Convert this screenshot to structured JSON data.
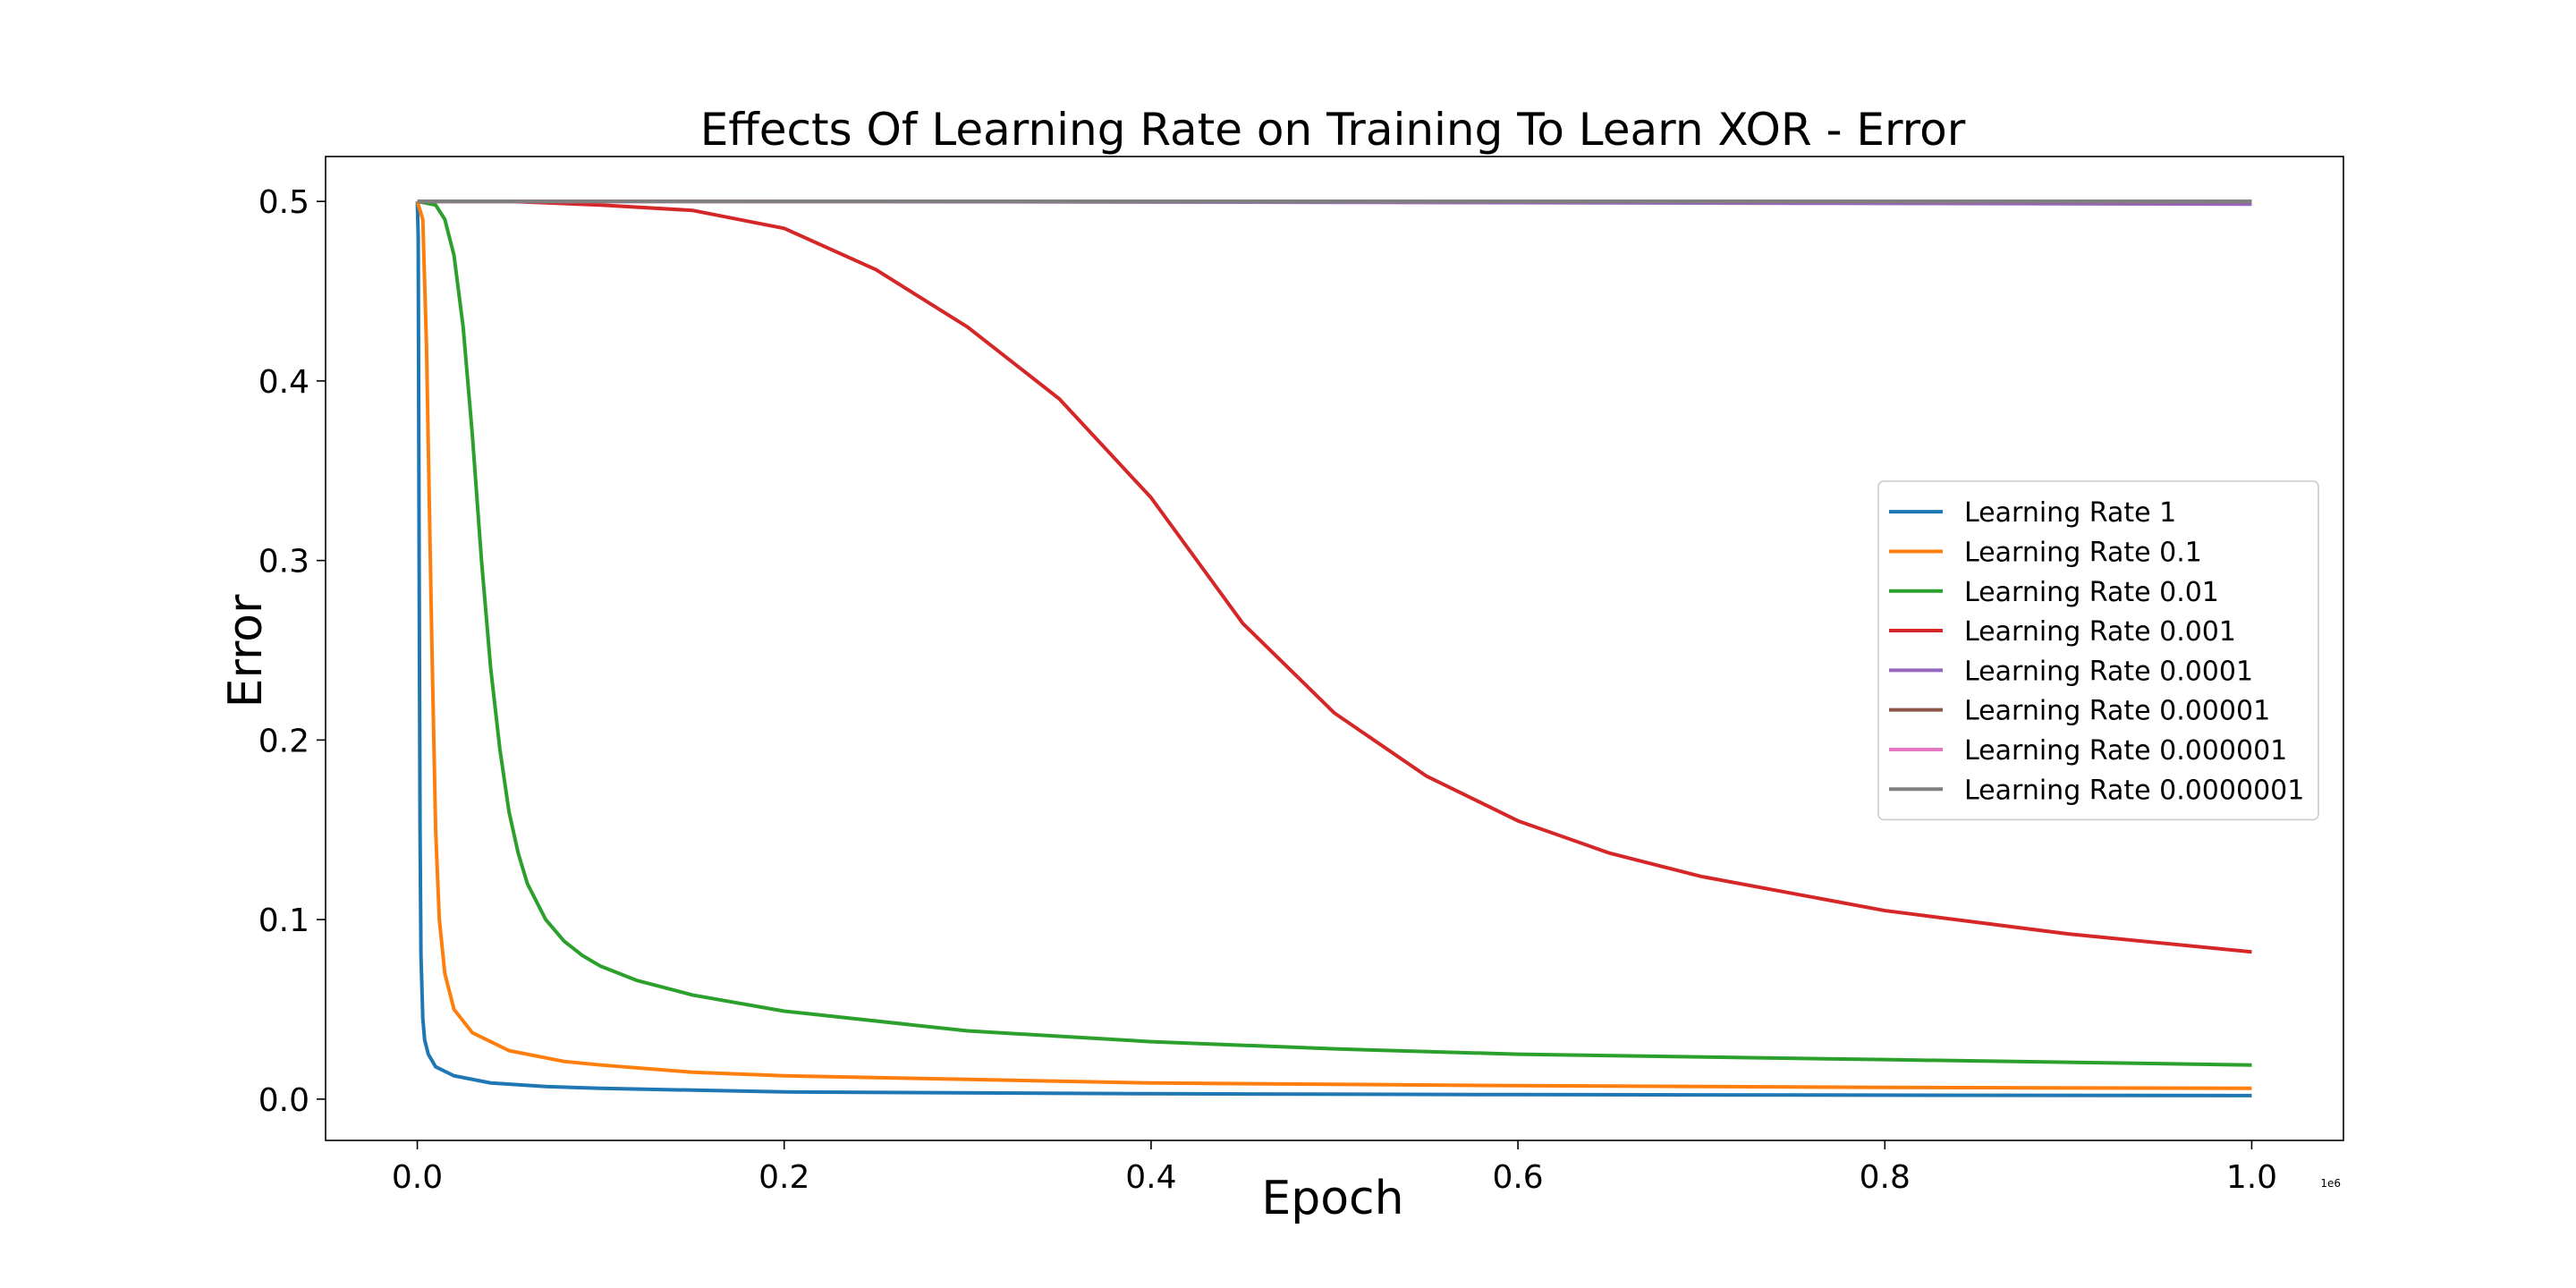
{
  "chart_data": {
    "type": "line",
    "title": "Effects Of Learning Rate on Training To Learn XOR - Error",
    "xlabel": "Epoch",
    "ylabel": "Error",
    "x_offset_text": "1e6",
    "xlim": [
      -0.05,
      1.05
    ],
    "ylim": [
      -0.023,
      0.525
    ],
    "x_ticks": [
      0.0,
      0.2,
      0.4,
      0.6,
      0.8,
      1.0
    ],
    "x_tick_labels": [
      "0.0",
      "0.2",
      "0.4",
      "0.6",
      "0.8",
      "1.0"
    ],
    "y_ticks": [
      0.0,
      0.1,
      0.2,
      0.3,
      0.4,
      0.5
    ],
    "y_tick_labels": [
      "0.0",
      "0.1",
      "0.2",
      "0.3",
      "0.4",
      "0.5"
    ],
    "grid": false,
    "legend_position": "center-right",
    "series": [
      {
        "name": "Learning Rate 1",
        "color": "#1f77b4",
        "x": [
          0,
          0.0005,
          0.001,
          0.0015,
          0.002,
          0.003,
          0.004,
          0.006,
          0.01,
          0.02,
          0.04,
          0.07,
          0.1,
          0.2,
          0.4,
          0.6,
          0.8,
          1.0
        ],
        "y": [
          0.5,
          0.48,
          0.3,
          0.15,
          0.08,
          0.045,
          0.033,
          0.025,
          0.018,
          0.013,
          0.009,
          0.007,
          0.006,
          0.004,
          0.003,
          0.0025,
          0.0022,
          0.002
        ]
      },
      {
        "name": "Learning Rate 0.1",
        "color": "#ff7f0e",
        "x": [
          0,
          0.003,
          0.005,
          0.008,
          0.01,
          0.012,
          0.015,
          0.02,
          0.03,
          0.05,
          0.08,
          0.1,
          0.15,
          0.2,
          0.3,
          0.4,
          0.6,
          0.8,
          1.0
        ],
        "y": [
          0.5,
          0.49,
          0.42,
          0.25,
          0.15,
          0.1,
          0.07,
          0.05,
          0.037,
          0.027,
          0.021,
          0.019,
          0.015,
          0.013,
          0.011,
          0.009,
          0.0075,
          0.0065,
          0.006
        ]
      },
      {
        "name": "Learning Rate 0.01",
        "color": "#2ca02c",
        "x": [
          0,
          0.01,
          0.015,
          0.02,
          0.025,
          0.03,
          0.035,
          0.04,
          0.045,
          0.05,
          0.055,
          0.06,
          0.07,
          0.08,
          0.09,
          0.1,
          0.12,
          0.15,
          0.2,
          0.3,
          0.4,
          0.5,
          0.6,
          0.8,
          1.0
        ],
        "y": [
          0.5,
          0.498,
          0.49,
          0.47,
          0.43,
          0.37,
          0.3,
          0.24,
          0.195,
          0.16,
          0.137,
          0.12,
          0.1,
          0.088,
          0.08,
          0.074,
          0.066,
          0.058,
          0.049,
          0.038,
          0.032,
          0.028,
          0.025,
          0.022,
          0.019
        ]
      },
      {
        "name": "Learning Rate 0.001",
        "color": "#d62728",
        "x": [
          0,
          0.05,
          0.1,
          0.15,
          0.2,
          0.25,
          0.3,
          0.35,
          0.4,
          0.45,
          0.5,
          0.55,
          0.6,
          0.65,
          0.7,
          0.8,
          0.9,
          1.0
        ],
        "y": [
          0.5,
          0.5,
          0.498,
          0.495,
          0.485,
          0.462,
          0.43,
          0.39,
          0.335,
          0.265,
          0.215,
          0.18,
          0.155,
          0.137,
          0.124,
          0.105,
          0.092,
          0.082
        ]
      },
      {
        "name": "Learning Rate 0.0001",
        "color": "#9467bd",
        "x": [
          0,
          0.25,
          0.5,
          0.75,
          1.0
        ],
        "y": [
          0.5,
          0.4999,
          0.4995,
          0.499,
          0.4985
        ]
      },
      {
        "name": "Learning Rate 0.00001",
        "color": "#8c564b",
        "x": [
          0,
          0.5,
          1.0
        ],
        "y": [
          0.5,
          0.5,
          0.4999
        ]
      },
      {
        "name": "Learning Rate 0.000001",
        "color": "#e377c2",
        "x": [
          0,
          0.5,
          1.0
        ],
        "y": [
          0.5,
          0.5,
          0.5
        ]
      },
      {
        "name": "Learning Rate 0.0000001",
        "color": "#7f7f7f",
        "x": [
          0,
          0.5,
          1.0
        ],
        "y": [
          0.5,
          0.5,
          0.5
        ]
      }
    ]
  }
}
